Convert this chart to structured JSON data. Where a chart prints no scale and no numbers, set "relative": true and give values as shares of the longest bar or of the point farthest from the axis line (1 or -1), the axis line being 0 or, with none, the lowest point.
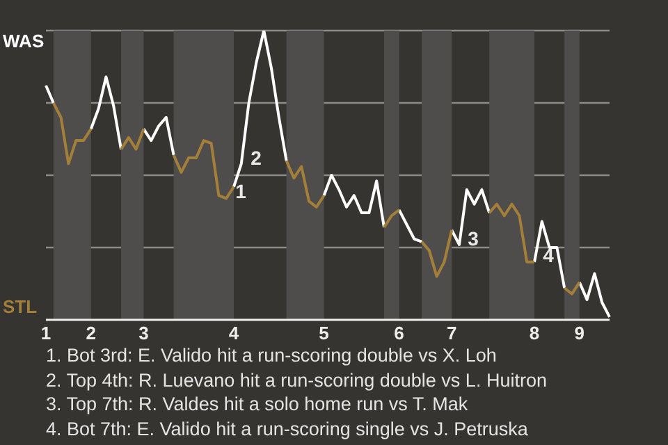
{
  "chart_data": {
    "type": "line",
    "relative": true,
    "grid": "y",
    "marker": "none",
    "line_style": "solid",
    "categories": [
      "1",
      null,
      null,
      null,
      null,
      null,
      "2",
      null,
      null,
      null,
      null,
      null,
      null,
      "3",
      null,
      null,
      null,
      null,
      null,
      null,
      null,
      null,
      null,
      null,
      null,
      "4",
      null,
      null,
      null,
      null,
      null,
      null,
      null,
      null,
      null,
      null,
      null,
      "5",
      null,
      null,
      null,
      null,
      null,
      null,
      null,
      null,
      null,
      "6",
      null,
      null,
      null,
      null,
      null,
      null,
      "7",
      null,
      null,
      null,
      null,
      null,
      null,
      null,
      null,
      null,
      null,
      "8",
      null,
      null,
      null,
      null,
      null,
      "9",
      null,
      null,
      null,
      null
    ],
    "series": [
      {
        "color": "#ffffff",
        "values": [
          0.81,
          0.75,
          null,
          null,
          null,
          null,
          0.66,
          0.73,
          0.84,
          0.74,
          0.59,
          null,
          null,
          0.66,
          0.62,
          0.67,
          0.7,
          0.57,
          null,
          null,
          null,
          null,
          null,
          null,
          null,
          0.46,
          0.54,
          0.75,
          0.89,
          1,
          0.87,
          0.7,
          0.55,
          null,
          null,
          null,
          null,
          0.43,
          0.5,
          0.45,
          0.39,
          0.43,
          0.37,
          0.37,
          0.48,
          0.32,
          null,
          0.38,
          0.33,
          0.28,
          0.27,
          null,
          null,
          null,
          0.31,
          0.26,
          0.45,
          0.4,
          0.45,
          0.37,
          null,
          null,
          null,
          null,
          null,
          0.2,
          0.34,
          0.25,
          0.25,
          0.11,
          null,
          0.13,
          0.07,
          0.16,
          0.06,
          0.01
        ]
      },
      {
        "color": "#a47f3a",
        "values": [
          null,
          0.75,
          0.7,
          0.54,
          0.62,
          0.62,
          0.66,
          null,
          null,
          null,
          0.59,
          0.63,
          0.59,
          0.66,
          null,
          null,
          null,
          0.57,
          0.51,
          0.56,
          0.56,
          0.62,
          0.61,
          0.43,
          0.42,
          0.46,
          null,
          null,
          null,
          null,
          null,
          null,
          0.55,
          0.49,
          0.53,
          0.41,
          0.39,
          0.43,
          null,
          null,
          null,
          null,
          null,
          null,
          null,
          0.32,
          0.36,
          0.38,
          null,
          null,
          0.27,
          0.24,
          0.15,
          0.2,
          0.31,
          null,
          null,
          null,
          null,
          0.37,
          0.4,
          0.36,
          0.4,
          0.36,
          0.2,
          0.2,
          null,
          null,
          null,
          0.11,
          0.09,
          0.13,
          null,
          null,
          null,
          null
        ]
      }
    ],
    "annotations": [
      "WAS",
      "STL",
      "1",
      "2",
      "3",
      "4",
      "1. Bot 3rd: E. Valido hit a run-scoring double vs X. Loh",
      "2. Top 4th: R. Luevano hit a run-scoring double vs L. Huitron",
      "3. Top 7th: R. Valdes hit a solo home run vs T. Mak",
      "4. Bot 7th: E. Valido hit a run-scoring single vs J. Petruska"
    ]
  }
}
